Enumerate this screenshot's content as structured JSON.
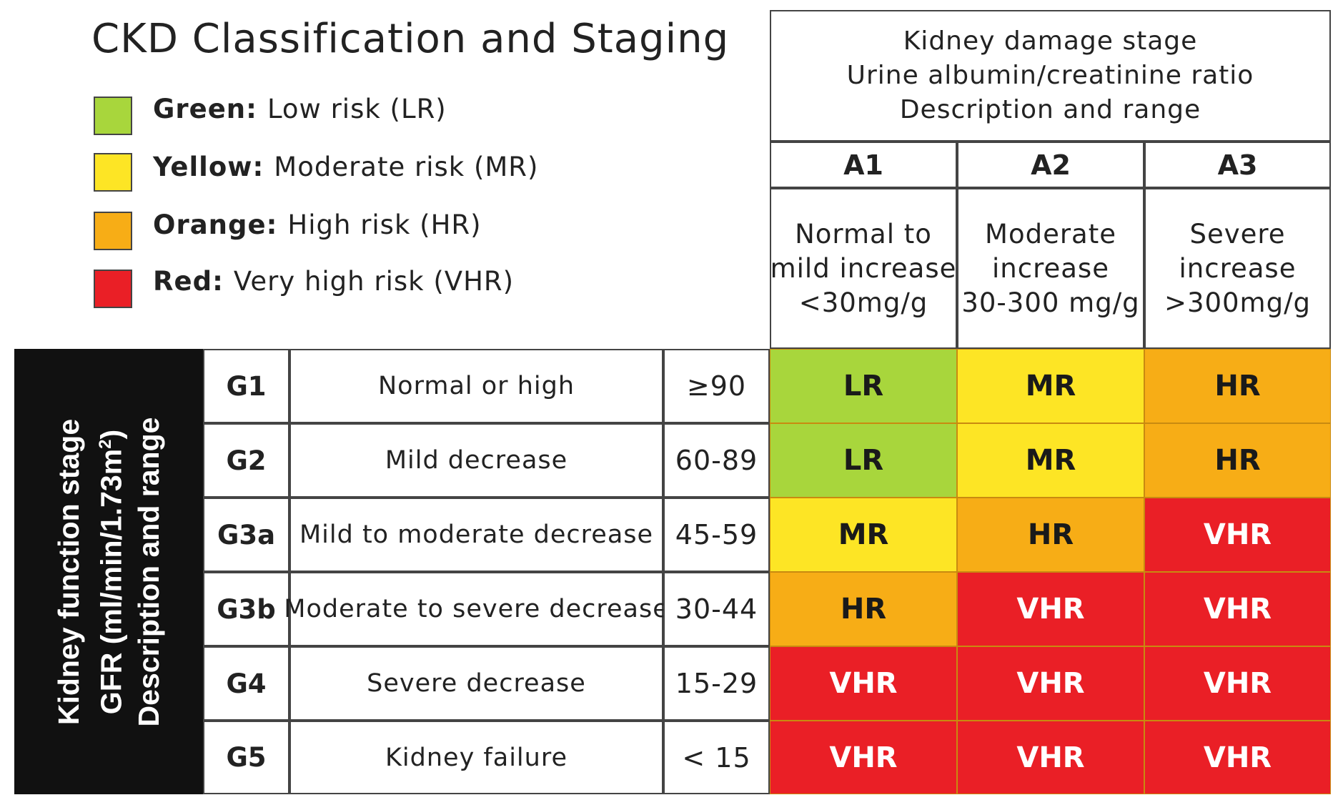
{
  "title": "CKD Classification and Staging",
  "legend": [
    {
      "color_name": "Green:",
      "label": "Low risk (LR)",
      "color": "#a8d63c"
    },
    {
      "color_name": "Yellow:",
      "label": "Moderate risk (MR)",
      "color": "#fde525"
    },
    {
      "color_name": "Orange:",
      "label": "High risk (HR)",
      "color": "#f7ad16"
    },
    {
      "color_name": "Red:",
      "label": "Very high risk (VHR)",
      "color": "#ea1f26"
    }
  ],
  "albuminuria_header": {
    "line1": "Kidney damage stage",
    "line2": "Urine albumin/creatinine ratio",
    "line3": "Description and range"
  },
  "albuminuria_stages": [
    {
      "code": "A1",
      "desc1": "Normal to",
      "desc2": "mild increase",
      "range": "<30mg/g"
    },
    {
      "code": "A2",
      "desc1": "Moderate",
      "desc2": "increase",
      "range": "30-300 mg/g"
    },
    {
      "code": "A3",
      "desc1": "Severe",
      "desc2": "increase",
      "range": ">300mg/g"
    }
  ],
  "gfr_header": {
    "line1": "Kidney function stage",
    "line2_prefix": "GFR (ml/min/1.73m",
    "line2_sup": "2",
    "line2_suffix": ")",
    "line3": "Description and range"
  },
  "gfr_stages": [
    {
      "code": "G1",
      "desc": "Normal or high",
      "range": "≥90",
      "risk": [
        "LR",
        "MR",
        "HR"
      ]
    },
    {
      "code": "G2",
      "desc": "Mild decrease",
      "range": "60-89",
      "risk": [
        "LR",
        "MR",
        "HR"
      ]
    },
    {
      "code": "G3a",
      "desc": "Mild to moderate decrease",
      "range": "45-59",
      "risk": [
        "MR",
        "HR",
        "VHR"
      ]
    },
    {
      "code": "G3b",
      "desc": "Moderate to severe decrease",
      "range": "30-44",
      "risk": [
        "HR",
        "VHR",
        "VHR"
      ]
    },
    {
      "code": "G4",
      "desc": "Severe decrease",
      "range": "15-29",
      "risk": [
        "VHR",
        "VHR",
        "VHR"
      ]
    },
    {
      "code": "G5",
      "desc": "Kidney failure",
      "range": "< 15",
      "risk": [
        "VHR",
        "VHR",
        "VHR"
      ]
    }
  ],
  "risk_colors": {
    "LR": {
      "bg": "#a8d63c",
      "fg": "#1a1a1a"
    },
    "MR": {
      "bg": "#fde525",
      "fg": "#1a1a1a"
    },
    "HR": {
      "bg": "#f7ad16",
      "fg": "#1a1a1a"
    },
    "VHR": {
      "bg": "#ea1f26",
      "fg": "#ffffff"
    }
  }
}
